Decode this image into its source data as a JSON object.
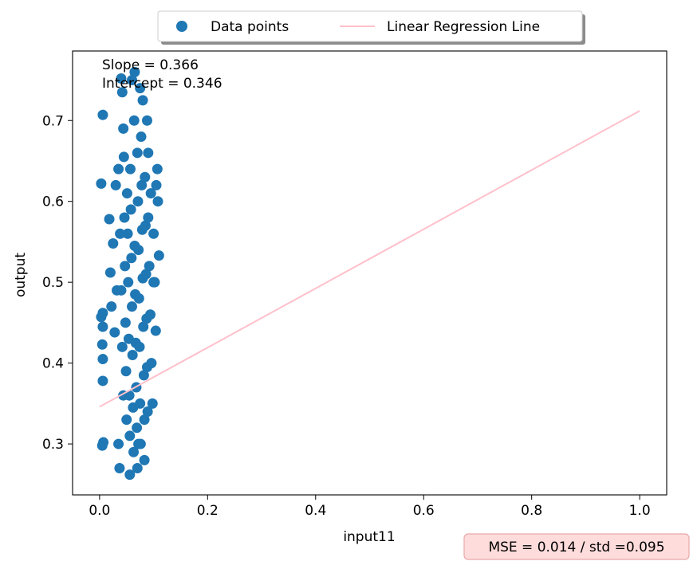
{
  "chart_data": {
    "type": "scatter",
    "xlabel": "input11",
    "ylabel": "output",
    "xlim": [
      -0.05,
      1.05
    ],
    "ylim": [
      0.237,
      0.786
    ],
    "x_ticks": [
      0.0,
      0.2,
      0.4,
      0.6,
      0.8,
      1.0
    ],
    "x_tick_labels": [
      "0.0",
      "0.2",
      "0.4",
      "0.6",
      "0.8",
      "1.0"
    ],
    "y_ticks": [
      0.3,
      0.4,
      0.5,
      0.6,
      0.7
    ],
    "y_tick_labels": [
      "0.3",
      "0.4",
      "0.5",
      "0.6",
      "0.7"
    ],
    "grid": false,
    "legend_position": "top-center outside",
    "series": [
      {
        "name": "Data points",
        "kind": "scatter",
        "color": "#1f77b4",
        "points": [
          [
            0.003,
            0.622
          ],
          [
            0.006,
            0.707
          ],
          [
            0.003,
            0.457
          ],
          [
            0.006,
            0.462
          ],
          [
            0.006,
            0.445
          ],
          [
            0.005,
            0.423
          ],
          [
            0.006,
            0.405
          ],
          [
            0.006,
            0.378
          ],
          [
            0.005,
            0.298
          ],
          [
            0.007,
            0.302
          ],
          [
            0.018,
            0.578
          ],
          [
            0.02,
            0.512
          ],
          [
            0.022,
            0.47
          ],
          [
            0.025,
            0.548
          ],
          [
            0.028,
            0.438
          ],
          [
            0.03,
            0.62
          ],
          [
            0.032,
            0.49
          ],
          [
            0.035,
            0.3
          ],
          [
            0.037,
            0.27
          ],
          [
            0.04,
            0.752
          ],
          [
            0.042,
            0.735
          ],
          [
            0.044,
            0.69
          ],
          [
            0.045,
            0.655
          ],
          [
            0.046,
            0.58
          ],
          [
            0.047,
            0.52
          ],
          [
            0.048,
            0.45
          ],
          [
            0.049,
            0.39
          ],
          [
            0.05,
            0.33
          ],
          [
            0.051,
            0.61
          ],
          [
            0.052,
            0.56
          ],
          [
            0.053,
            0.5
          ],
          [
            0.054,
            0.43
          ],
          [
            0.055,
            0.36
          ],
          [
            0.056,
            0.31
          ],
          [
            0.057,
            0.64
          ],
          [
            0.058,
            0.59
          ],
          [
            0.059,
            0.53
          ],
          [
            0.06,
            0.47
          ],
          [
            0.061,
            0.41
          ],
          [
            0.062,
            0.345
          ],
          [
            0.063,
            0.29
          ],
          [
            0.064,
            0.7
          ],
          [
            0.065,
            0.545
          ],
          [
            0.066,
            0.485
          ],
          [
            0.067,
            0.425
          ],
          [
            0.068,
            0.37
          ],
          [
            0.069,
            0.32
          ],
          [
            0.07,
            0.66
          ],
          [
            0.071,
            0.6
          ],
          [
            0.072,
            0.54
          ],
          [
            0.073,
            0.48
          ],
          [
            0.074,
            0.42
          ],
          [
            0.075,
            0.35
          ],
          [
            0.076,
            0.3
          ],
          [
            0.077,
            0.68
          ],
          [
            0.078,
            0.62
          ],
          [
            0.079,
            0.565
          ],
          [
            0.08,
            0.505
          ],
          [
            0.081,
            0.445
          ],
          [
            0.082,
            0.385
          ],
          [
            0.083,
            0.33
          ],
          [
            0.084,
            0.63
          ],
          [
            0.085,
            0.57
          ],
          [
            0.086,
            0.51
          ],
          [
            0.087,
            0.455
          ],
          [
            0.088,
            0.395
          ],
          [
            0.089,
            0.34
          ],
          [
            0.09,
            0.58
          ],
          [
            0.092,
            0.52
          ],
          [
            0.094,
            0.46
          ],
          [
            0.096,
            0.4
          ],
          [
            0.098,
            0.35
          ],
          [
            0.1,
            0.56
          ],
          [
            0.102,
            0.5
          ],
          [
            0.104,
            0.44
          ],
          [
            0.105,
            0.62
          ],
          [
            0.107,
            0.64
          ],
          [
            0.108,
            0.6
          ],
          [
            0.11,
            0.533
          ],
          [
            0.065,
            0.76
          ],
          [
            0.06,
            0.75
          ],
          [
            0.056,
            0.262
          ],
          [
            0.07,
            0.27
          ],
          [
            0.08,
            0.725
          ],
          [
            0.09,
            0.66
          ],
          [
            0.1,
            0.5
          ],
          [
            0.075,
            0.74
          ],
          [
            0.035,
            0.64
          ],
          [
            0.038,
            0.56
          ],
          [
            0.04,
            0.49
          ],
          [
            0.042,
            0.42
          ],
          [
            0.044,
            0.36
          ],
          [
            0.088,
            0.7
          ],
          [
            0.095,
            0.61
          ],
          [
            0.083,
            0.28
          ],
          [
            0.072,
            0.3
          ]
        ]
      },
      {
        "name": "Linear Regression Line",
        "kind": "line",
        "color": "#ffc0cb",
        "slope": 0.366,
        "intercept": 0.346,
        "x_range": [
          0.0,
          1.0
        ]
      }
    ],
    "annotations": {
      "slope_text": "Slope = 0.366",
      "intercept_text": "Intercept = 0.346",
      "mse_text": "MSE = 0.014 / std =0.095",
      "mse_box_fill": "#ffdcdc",
      "mse_box_edge": "#e8a8a8"
    }
  }
}
